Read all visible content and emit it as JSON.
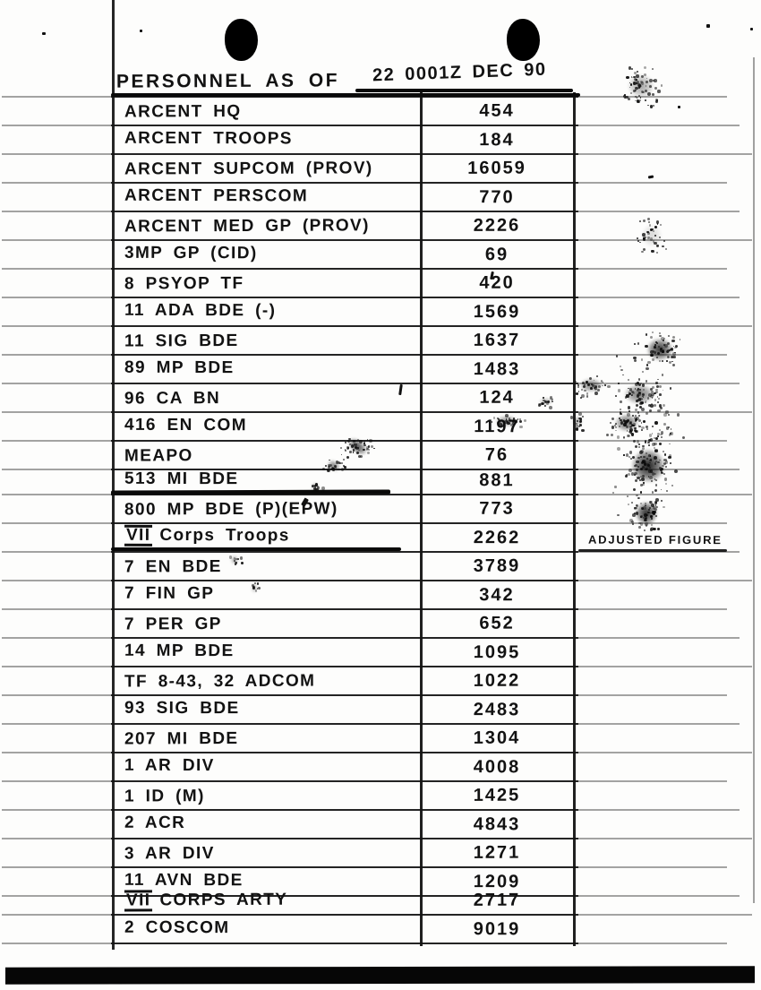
{
  "header": {
    "label": "PERSONNEL AS OF",
    "date": "22 0001Z DEC 90"
  },
  "table": {
    "columns": [
      "unit",
      "personnel_count",
      "note"
    ],
    "rows": [
      {
        "unit": "ARCENT HQ",
        "count": "454"
      },
      {
        "unit": "ARCENT TROOPS",
        "count": "184"
      },
      {
        "unit": "ARCENT SUPCOM (PROV)",
        "count": "16059"
      },
      {
        "unit": "ARCENT PERSCOM",
        "count": "770"
      },
      {
        "unit": "ARCENT MED GP (PROV)",
        "count": "2226"
      },
      {
        "unit": "3MP GP (CID)",
        "count": "69"
      },
      {
        "unit": "8 PSYOP TF",
        "count": "420"
      },
      {
        "unit": "11 ADA BDE (-)",
        "count": "1569"
      },
      {
        "unit": "11 SIG BDE",
        "count": "1637"
      },
      {
        "unit": "89 MP BDE",
        "count": "1483"
      },
      {
        "unit": "96 CA BN",
        "count": "124"
      },
      {
        "unit": "416 EN COM",
        "count": "1197"
      },
      {
        "unit": "MEAPO",
        "count": "76"
      },
      {
        "unit": "513 MI BDE",
        "count": "881"
      },
      {
        "unit": "800 MP BDE (P)(EPW)",
        "count": "773"
      },
      {
        "prefix": "VII",
        "unit": "Corps Troops",
        "count": "2262",
        "note": "ADJUSTED FIGURE"
      },
      {
        "unit": "7 EN BDE",
        "count": "3789"
      },
      {
        "unit": "7 FIN GP",
        "count": "342"
      },
      {
        "unit": "7 PER GP",
        "count": "652"
      },
      {
        "unit": "14 MP BDE",
        "count": "1095"
      },
      {
        "unit": "TF 8-43, 32 ADCOM",
        "count": "1022"
      },
      {
        "unit": "93 SIG BDE",
        "count": "2483"
      },
      {
        "unit": "207 MI BDE",
        "count": "1304"
      },
      {
        "unit": "1 AR DIV",
        "count": "4008"
      },
      {
        "unit": "1 ID (M)",
        "count": "1425"
      },
      {
        "unit": "2 ACR",
        "count": "4843"
      },
      {
        "unit": "3 AR DIV",
        "count": "1271"
      },
      {
        "unit": "11 AVN BDE",
        "count": "1209"
      },
      {
        "prefix": "VII",
        "unit": "CORPS ARTY",
        "count": "2717"
      },
      {
        "unit": "2 COSCOM",
        "count": "9019"
      }
    ]
  }
}
